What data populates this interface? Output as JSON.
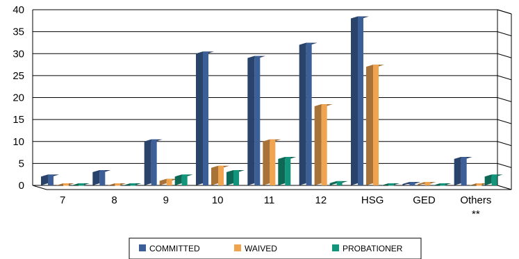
{
  "chart_data": {
    "type": "bar",
    "categories": [
      "7",
      "8",
      "9",
      "10",
      "11",
      "12",
      "HSG",
      "GED",
      "Others"
    ],
    "category_note": {
      "Others": "**"
    },
    "series": [
      {
        "name": "COMMITTED",
        "values": [
          2,
          3,
          10,
          30,
          29,
          32,
          38,
          0.3,
          6
        ],
        "color": "#3c5f97"
      },
      {
        "name": "WAIVED",
        "values": [
          0,
          0,
          1,
          4,
          10,
          18,
          27,
          0.3,
          0
        ],
        "color": "#f0a450"
      },
      {
        "name": "PROBATIONER",
        "values": [
          0,
          0,
          2,
          3,
          6,
          0.5,
          0,
          0,
          2
        ],
        "color": "#12957a"
      }
    ],
    "ylim": [
      0,
      40
    ],
    "yticks": [
      0,
      5,
      10,
      15,
      20,
      25,
      30,
      35,
      40
    ],
    "grid": true,
    "legend": "bottom",
    "title": "",
    "xlabel": "",
    "ylabel": ""
  }
}
